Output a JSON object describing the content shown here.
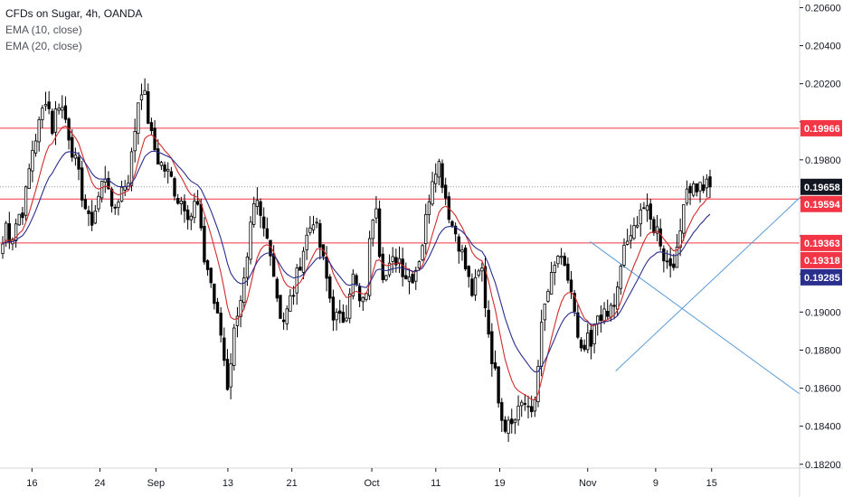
{
  "legend": {
    "symbol_line": "CFDs on Sugar, 4h, OANDA",
    "ema10_line": "EMA (10, close)",
    "ema20_line": "EMA (20, close)"
  },
  "chart_data": {
    "type": "candlestick",
    "title": "CFDs on Sugar, 4h, OANDA",
    "y_ticks": [
      0.206,
      0.204,
      0.202,
      0.2,
      0.198,
      0.196,
      0.194,
      0.192,
      0.19,
      0.188,
      0.186,
      0.184,
      0.182
    ],
    "y_tick_labels": [
      "0.20600",
      "0.20400",
      "0.20200",
      "",
      "0.19800",
      "",
      "",
      "",
      "0.19000",
      "0.18800",
      "0.18600",
      "0.18400",
      "0.18200"
    ],
    "ylim": [
      0.1818,
      0.2064
    ],
    "x_ticks": [
      {
        "label": "16",
        "pos": 0.04
      },
      {
        "label": "24",
        "pos": 0.125
      },
      {
        "label": "Sep",
        "pos": 0.195
      },
      {
        "label": "13",
        "pos": 0.285
      },
      {
        "label": "21",
        "pos": 0.365
      },
      {
        "label": "Oct",
        "pos": 0.465
      },
      {
        "label": "11",
        "pos": 0.545
      },
      {
        "label": "19",
        "pos": 0.625
      },
      {
        "label": "Nov",
        "pos": 0.735
      },
      {
        "label": "9",
        "pos": 0.82
      },
      {
        "label": "15",
        "pos": 0.89
      }
    ],
    "grid": false,
    "horizontal_levels": [
      {
        "value": 0.19966,
        "label": "0.19966",
        "color": "#f23645"
      },
      {
        "value": 0.19594,
        "label": "0.19594",
        "color": "#f23645"
      },
      {
        "value": 0.19363,
        "label": "0.19363",
        "color": "#f23645"
      }
    ],
    "price_tags": [
      {
        "value": 0.19966,
        "label": "0.19966",
        "color": "#f23645"
      },
      {
        "value": 0.19658,
        "label": "0.19658",
        "color": "#131722"
      },
      {
        "value": 0.19594,
        "label": "0.19594",
        "color": "#f23645"
      },
      {
        "value": 0.19363,
        "label": "0.19363",
        "color": "#f23645"
      },
      {
        "value": 0.19318,
        "label": "0.19318",
        "color": "#f23645"
      },
      {
        "value": 0.19285,
        "label": "0.19285",
        "color": "#2a2e8c"
      }
    ],
    "last_price": 0.19658,
    "trend_lines": [
      {
        "name": "ascending support",
        "from": {
          "pos": 0.77,
          "value": 0.1869
        },
        "to": {
          "pos": 1.0,
          "value": 0.196
        },
        "color": "#5b9bd5"
      },
      {
        "name": "descending line",
        "from": {
          "pos": 0.738,
          "value": 0.1937
        },
        "to": {
          "pos": 1.0,
          "value": 0.1857
        },
        "color": "#5b9bd5"
      }
    ],
    "series": [
      {
        "name": "EMA (10, close)",
        "color": "#d12c2c"
      },
      {
        "name": "EMA (20, close)",
        "color": "#2a2e8c"
      }
    ],
    "anchors": [
      [
        0.0,
        0.192
      ],
      [
        0.006,
        0.1948
      ],
      [
        0.014,
        0.1938
      ],
      [
        0.022,
        0.195
      ],
      [
        0.03,
        0.1955
      ],
      [
        0.04,
        0.1985
      ],
      [
        0.05,
        0.2
      ],
      [
        0.058,
        0.2015
      ],
      [
        0.066,
        0.1995
      ],
      [
        0.072,
        0.2012
      ],
      [
        0.08,
        0.2005
      ],
      [
        0.088,
        0.199
      ],
      [
        0.096,
        0.1975
      ],
      [
        0.104,
        0.196
      ],
      [
        0.112,
        0.1945
      ],
      [
        0.12,
        0.1955
      ],
      [
        0.128,
        0.1968
      ],
      [
        0.134,
        0.1975
      ],
      [
        0.14,
        0.195
      ],
      [
        0.146,
        0.1958
      ],
      [
        0.152,
        0.1965
      ],
      [
        0.16,
        0.197
      ],
      [
        0.166,
        0.1985
      ],
      [
        0.172,
        0.201
      ],
      [
        0.178,
        0.202
      ],
      [
        0.184,
        0.2005
      ],
      [
        0.19,
        0.199
      ],
      [
        0.198,
        0.198
      ],
      [
        0.206,
        0.1975
      ],
      [
        0.214,
        0.197
      ],
      [
        0.222,
        0.196
      ],
      [
        0.23,
        0.1958
      ],
      [
        0.238,
        0.195
      ],
      [
        0.246,
        0.196
      ],
      [
        0.254,
        0.193
      ],
      [
        0.262,
        0.192
      ],
      [
        0.27,
        0.19
      ],
      [
        0.278,
        0.1885
      ],
      [
        0.284,
        0.186
      ],
      [
        0.29,
        0.188
      ],
      [
        0.296,
        0.19
      ],
      [
        0.302,
        0.191
      ],
      [
        0.308,
        0.192
      ],
      [
        0.314,
        0.1945
      ],
      [
        0.32,
        0.1958
      ],
      [
        0.326,
        0.1948
      ],
      [
        0.332,
        0.194
      ],
      [
        0.338,
        0.1935
      ],
      [
        0.344,
        0.1915
      ],
      [
        0.35,
        0.19
      ],
      [
        0.356,
        0.1895
      ],
      [
        0.362,
        0.1905
      ],
      [
        0.368,
        0.1912
      ],
      [
        0.376,
        0.1928
      ],
      [
        0.384,
        0.194
      ],
      [
        0.392,
        0.195
      ],
      [
        0.4,
        0.1935
      ],
      [
        0.408,
        0.1918
      ],
      [
        0.416,
        0.19
      ],
      [
        0.424,
        0.1895
      ],
      [
        0.432,
        0.1898
      ],
      [
        0.44,
        0.192
      ],
      [
        0.446,
        0.1912
      ],
      [
        0.452,
        0.19
      ],
      [
        0.458,
        0.1912
      ],
      [
        0.464,
        0.1945
      ],
      [
        0.47,
        0.1962
      ],
      [
        0.476,
        0.1925
      ],
      [
        0.482,
        0.1918
      ],
      [
        0.49,
        0.1925
      ],
      [
        0.498,
        0.193
      ],
      [
        0.506,
        0.192
      ],
      [
        0.514,
        0.1918
      ],
      [
        0.522,
        0.1925
      ],
      [
        0.53,
        0.194
      ],
      [
        0.536,
        0.196
      ],
      [
        0.542,
        0.1975
      ],
      [
        0.548,
        0.198
      ],
      [
        0.554,
        0.1968
      ],
      [
        0.56,
        0.1955
      ],
      [
        0.566,
        0.1945
      ],
      [
        0.572,
        0.194
      ],
      [
        0.578,
        0.193
      ],
      [
        0.584,
        0.192
      ],
      [
        0.59,
        0.191
      ],
      [
        0.596,
        0.1915
      ],
      [
        0.602,
        0.1925
      ],
      [
        0.608,
        0.19
      ],
      [
        0.614,
        0.188
      ],
      [
        0.62,
        0.1865
      ],
      [
        0.626,
        0.185
      ],
      [
        0.632,
        0.184
      ],
      [
        0.638,
        0.1848
      ],
      [
        0.644,
        0.1842
      ],
      [
        0.65,
        0.1855
      ],
      [
        0.656,
        0.1852
      ],
      [
        0.662,
        0.1845
      ],
      [
        0.668,
        0.185
      ],
      [
        0.674,
        0.188
      ],
      [
        0.68,
        0.19
      ],
      [
        0.686,
        0.1912
      ],
      [
        0.692,
        0.192
      ],
      [
        0.698,
        0.193
      ],
      [
        0.704,
        0.1922
      ],
      [
        0.71,
        0.1918
      ],
      [
        0.716,
        0.1908
      ],
      [
        0.722,
        0.1885
      ],
      [
        0.728,
        0.1875
      ],
      [
        0.734,
        0.1885
      ],
      [
        0.74,
        0.188
      ],
      [
        0.746,
        0.1898
      ],
      [
        0.752,
        0.19
      ],
      [
        0.758,
        0.1895
      ],
      [
        0.764,
        0.1902
      ],
      [
        0.77,
        0.1905
      ],
      [
        0.776,
        0.192
      ],
      [
        0.782,
        0.194
      ],
      [
        0.788,
        0.1935
      ],
      [
        0.794,
        0.1945
      ],
      [
        0.8,
        0.1955
      ],
      [
        0.806,
        0.1955
      ],
      [
        0.812,
        0.1948
      ],
      [
        0.818,
        0.1945
      ],
      [
        0.824,
        0.1942
      ],
      [
        0.83,
        0.193
      ],
      [
        0.836,
        0.1925
      ],
      [
        0.842,
        0.1928
      ],
      [
        0.848,
        0.193
      ],
      [
        0.856,
        0.19658
      ]
    ]
  },
  "colors": {
    "up": "#ffffff",
    "down": "#000000",
    "wick": "#000000",
    "axis": "#131722",
    "scale_bg": "#ffffff"
  }
}
